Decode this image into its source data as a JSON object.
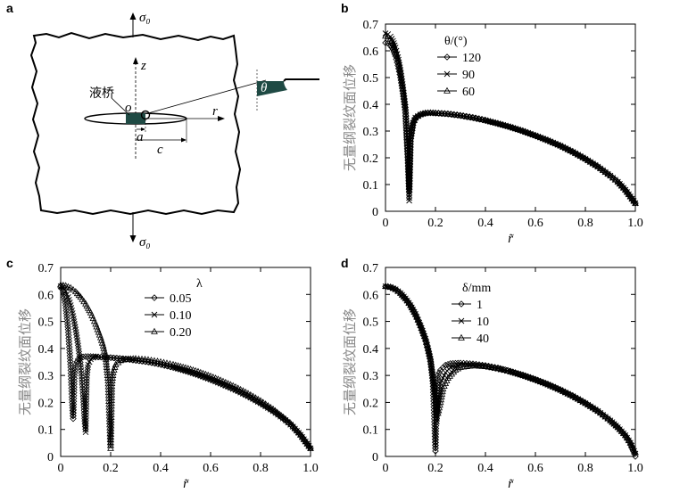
{
  "panel_a": {
    "label": "a",
    "sigma_top": "σ₀",
    "sigma_bottom": "σ₀",
    "axis_z": "z",
    "axis_r": "r",
    "origin": "o",
    "dim_a": "a",
    "dim_c": "c",
    "liquid_bridge": "液桥",
    "angle": "θ",
    "colors": {
      "liquid": "#1f4a44"
    }
  },
  "chart_data": [
    {
      "id": "b",
      "label": "b",
      "type": "line",
      "title": "",
      "xlabel": "r̃",
      "ylabel": "无量纲裂纹面位移",
      "xlim": [
        0,
        1.0
      ],
      "ylim": [
        0,
        0.7
      ],
      "xticks": [
        "0",
        "0.2",
        "0.4",
        "0.6",
        "0.8",
        "1.0"
      ],
      "yticks": [
        "0",
        "0.1",
        "0.2",
        "0.3",
        "0.4",
        "0.5",
        "0.6",
        "0.7"
      ],
      "legend_title": "θ/(°)",
      "legend_position": "top-middle",
      "series": [
        {
          "name": "120",
          "marker": "diamond",
          "x": [
            0,
            0.01,
            0.02,
            0.03,
            0.04,
            0.05,
            0.06,
            0.07,
            0.08,
            0.09,
            0.095,
            0.1,
            0.11,
            0.12,
            0.14,
            0.16,
            0.18,
            0.2,
            0.25,
            0.3,
            0.35,
            0.4,
            0.45,
            0.5,
            0.55,
            0.6,
            0.65,
            0.7,
            0.75,
            0.8,
            0.85,
            0.9,
            0.93,
            0.96,
            0.98,
            1.0
          ],
          "y": [
            0.63,
            0.628,
            0.62,
            0.605,
            0.58,
            0.545,
            0.5,
            0.44,
            0.37,
            0.2,
            0.09,
            0.27,
            0.33,
            0.35,
            0.362,
            0.367,
            0.368,
            0.367,
            0.364,
            0.358,
            0.35,
            0.34,
            0.328,
            0.315,
            0.3,
            0.283,
            0.265,
            0.245,
            0.222,
            0.196,
            0.167,
            0.133,
            0.11,
            0.08,
            0.055,
            0.03
          ]
        },
        {
          "name": "90",
          "marker": "cross",
          "x": [
            0,
            0.01,
            0.02,
            0.03,
            0.04,
            0.05,
            0.06,
            0.07,
            0.08,
            0.09,
            0.095,
            0.1,
            0.11,
            0.12,
            0.14,
            0.16,
            0.18,
            0.2,
            0.25,
            0.3,
            0.35,
            0.4,
            0.45,
            0.5,
            0.55,
            0.6,
            0.65,
            0.7,
            0.75,
            0.8,
            0.85,
            0.9,
            0.93,
            0.96,
            0.98,
            1.0
          ],
          "y": [
            0.665,
            0.662,
            0.653,
            0.637,
            0.612,
            0.576,
            0.528,
            0.465,
            0.39,
            0.2,
            0.04,
            0.27,
            0.33,
            0.35,
            0.362,
            0.367,
            0.368,
            0.367,
            0.364,
            0.358,
            0.35,
            0.34,
            0.328,
            0.315,
            0.3,
            0.283,
            0.265,
            0.245,
            0.222,
            0.196,
            0.167,
            0.133,
            0.11,
            0.08,
            0.055,
            0.03
          ]
        },
        {
          "name": "60",
          "marker": "triangle",
          "x": [
            0,
            0.01,
            0.02,
            0.03,
            0.04,
            0.05,
            0.06,
            0.07,
            0.08,
            0.09,
            0.095,
            0.1,
            0.11,
            0.12,
            0.14,
            0.16,
            0.18,
            0.2,
            0.25,
            0.3,
            0.35,
            0.4,
            0.45,
            0.5,
            0.55,
            0.6,
            0.65,
            0.7,
            0.75,
            0.8,
            0.85,
            0.9,
            0.93,
            0.96,
            0.98,
            1.0
          ],
          "y": [
            0.655,
            0.652,
            0.644,
            0.628,
            0.603,
            0.568,
            0.52,
            0.458,
            0.385,
            0.2,
            0.08,
            0.27,
            0.33,
            0.35,
            0.362,
            0.367,
            0.368,
            0.367,
            0.364,
            0.358,
            0.35,
            0.34,
            0.328,
            0.315,
            0.3,
            0.283,
            0.265,
            0.245,
            0.222,
            0.196,
            0.167,
            0.133,
            0.11,
            0.08,
            0.055,
            0.03
          ]
        }
      ]
    },
    {
      "id": "c",
      "label": "c",
      "type": "line",
      "title": "",
      "xlabel": "r̃",
      "ylabel": "无量纲裂纹面位移",
      "xlim": [
        0,
        1.0
      ],
      "ylim": [
        0,
        0.7
      ],
      "xticks": [
        "0",
        "0.2",
        "0.4",
        "0.6",
        "0.8",
        "1.0"
      ],
      "yticks": [
        "0",
        "0.1",
        "0.2",
        "0.3",
        "0.4",
        "0.5",
        "0.6",
        "0.7"
      ],
      "legend_title": "λ",
      "legend_position": "top-right",
      "series": [
        {
          "name": "0.05",
          "marker": "diamond",
          "x": [
            0,
            0.01,
            0.02,
            0.03,
            0.04,
            0.045,
            0.05,
            0.055,
            0.06,
            0.07,
            0.08,
            0.1,
            0.12,
            0.15,
            0.2,
            0.25,
            0.3,
            0.35,
            0.4,
            0.45,
            0.5,
            0.55,
            0.6,
            0.65,
            0.7,
            0.75,
            0.8,
            0.85,
            0.9,
            0.93,
            0.96,
            0.98,
            1.0
          ],
          "y": [
            0.63,
            0.61,
            0.56,
            0.47,
            0.33,
            0.22,
            0.14,
            0.3,
            0.34,
            0.36,
            0.367,
            0.37,
            0.37,
            0.369,
            0.366,
            0.362,
            0.356,
            0.35,
            0.341,
            0.33,
            0.317,
            0.302,
            0.285,
            0.266,
            0.246,
            0.223,
            0.197,
            0.168,
            0.134,
            0.11,
            0.08,
            0.055,
            0.03
          ]
        },
        {
          "name": "0.10",
          "marker": "cross",
          "x": [
            0,
            0.01,
            0.02,
            0.03,
            0.04,
            0.05,
            0.06,
            0.07,
            0.08,
            0.09,
            0.095,
            0.1,
            0.105,
            0.11,
            0.12,
            0.13,
            0.15,
            0.2,
            0.25,
            0.3,
            0.35,
            0.4,
            0.45,
            0.5,
            0.55,
            0.6,
            0.65,
            0.7,
            0.75,
            0.8,
            0.85,
            0.9,
            0.93,
            0.96,
            0.98,
            1.0
          ],
          "y": [
            0.63,
            0.625,
            0.612,
            0.59,
            0.56,
            0.52,
            0.47,
            0.41,
            0.34,
            0.22,
            0.14,
            0.09,
            0.3,
            0.34,
            0.36,
            0.366,
            0.368,
            0.366,
            0.362,
            0.356,
            0.35,
            0.341,
            0.33,
            0.317,
            0.302,
            0.285,
            0.266,
            0.246,
            0.223,
            0.197,
            0.168,
            0.134,
            0.11,
            0.08,
            0.055,
            0.03
          ]
        },
        {
          "name": "0.20",
          "marker": "triangle",
          "x": [
            0,
            0.02,
            0.04,
            0.06,
            0.08,
            0.1,
            0.12,
            0.14,
            0.16,
            0.17,
            0.18,
            0.19,
            0.195,
            0.2,
            0.205,
            0.21,
            0.22,
            0.24,
            0.26,
            0.3,
            0.35,
            0.4,
            0.45,
            0.5,
            0.55,
            0.6,
            0.65,
            0.7,
            0.75,
            0.8,
            0.85,
            0.9,
            0.93,
            0.96,
            0.98,
            1.0
          ],
          "y": [
            0.635,
            0.632,
            0.624,
            0.61,
            0.59,
            0.565,
            0.532,
            0.49,
            0.44,
            0.41,
            0.37,
            0.28,
            0.15,
            0.03,
            0.27,
            0.31,
            0.34,
            0.355,
            0.36,
            0.362,
            0.358,
            0.35,
            0.34,
            0.328,
            0.314,
            0.297,
            0.278,
            0.257,
            0.233,
            0.206,
            0.175,
            0.138,
            0.113,
            0.08,
            0.055,
            0.03
          ]
        }
      ]
    },
    {
      "id": "d",
      "label": "d",
      "type": "line",
      "title": "",
      "xlabel": "r̃",
      "ylabel": "无量纲裂纹面位移",
      "xlim": [
        0,
        1.0
      ],
      "ylim": [
        0,
        0.7
      ],
      "xticks": [
        "0",
        "0.2",
        "0.4",
        "0.6",
        "0.8",
        "1.0"
      ],
      "yticks": [
        "0",
        "0.1",
        "0.2",
        "0.3",
        "0.4",
        "0.5",
        "0.6",
        "0.7"
      ],
      "legend_title": "δ/mm",
      "legend_position": "top-left",
      "series": [
        {
          "name": "1",
          "marker": "diamond",
          "x": [
            0,
            0.02,
            0.04,
            0.06,
            0.08,
            0.1,
            0.12,
            0.14,
            0.16,
            0.17,
            0.18,
            0.19,
            0.195,
            0.2,
            0.205,
            0.21,
            0.22,
            0.24,
            0.26,
            0.3,
            0.35,
            0.4,
            0.45,
            0.5,
            0.55,
            0.6,
            0.65,
            0.7,
            0.75,
            0.8,
            0.85,
            0.9,
            0.93,
            0.96,
            0.98,
            1.0
          ],
          "y": [
            0.63,
            0.627,
            0.619,
            0.605,
            0.585,
            0.56,
            0.527,
            0.485,
            0.435,
            0.4,
            0.36,
            0.27,
            0.15,
            0.02,
            0.25,
            0.3,
            0.32,
            0.338,
            0.344,
            0.346,
            0.343,
            0.337,
            0.328,
            0.316,
            0.302,
            0.286,
            0.268,
            0.247,
            0.224,
            0.198,
            0.168,
            0.133,
            0.108,
            0.078,
            0.05,
            0.0
          ]
        },
        {
          "name": "10",
          "marker": "cross",
          "x": [
            0,
            0.02,
            0.04,
            0.06,
            0.08,
            0.1,
            0.12,
            0.14,
            0.16,
            0.17,
            0.18,
            0.19,
            0.2,
            0.205,
            0.21,
            0.22,
            0.24,
            0.26,
            0.3,
            0.35,
            0.4,
            0.45,
            0.5,
            0.55,
            0.6,
            0.65,
            0.7,
            0.75,
            0.8,
            0.85,
            0.9,
            0.93,
            0.96,
            0.98,
            1.0
          ],
          "y": [
            0.63,
            0.627,
            0.619,
            0.605,
            0.585,
            0.56,
            0.527,
            0.485,
            0.435,
            0.4,
            0.36,
            0.28,
            0.2,
            0.13,
            0.2,
            0.27,
            0.31,
            0.33,
            0.34,
            0.339,
            0.334,
            0.325,
            0.314,
            0.3,
            0.284,
            0.266,
            0.246,
            0.223,
            0.197,
            0.168,
            0.133,
            0.108,
            0.078,
            0.05,
            0.01
          ]
        },
        {
          "name": "40",
          "marker": "triangle",
          "x": [
            0,
            0.02,
            0.04,
            0.06,
            0.08,
            0.1,
            0.12,
            0.14,
            0.16,
            0.17,
            0.18,
            0.19,
            0.2,
            0.21,
            0.22,
            0.23,
            0.25,
            0.28,
            0.3,
            0.35,
            0.4,
            0.45,
            0.5,
            0.55,
            0.6,
            0.65,
            0.7,
            0.75,
            0.8,
            0.85,
            0.9,
            0.93,
            0.96,
            0.98,
            1.0
          ],
          "y": [
            0.63,
            0.627,
            0.619,
            0.605,
            0.585,
            0.56,
            0.527,
            0.485,
            0.435,
            0.4,
            0.36,
            0.3,
            0.22,
            0.16,
            0.2,
            0.25,
            0.29,
            0.32,
            0.33,
            0.336,
            0.333,
            0.325,
            0.314,
            0.3,
            0.284,
            0.266,
            0.246,
            0.223,
            0.197,
            0.168,
            0.133,
            0.108,
            0.078,
            0.05,
            0.015
          ]
        }
      ]
    }
  ]
}
